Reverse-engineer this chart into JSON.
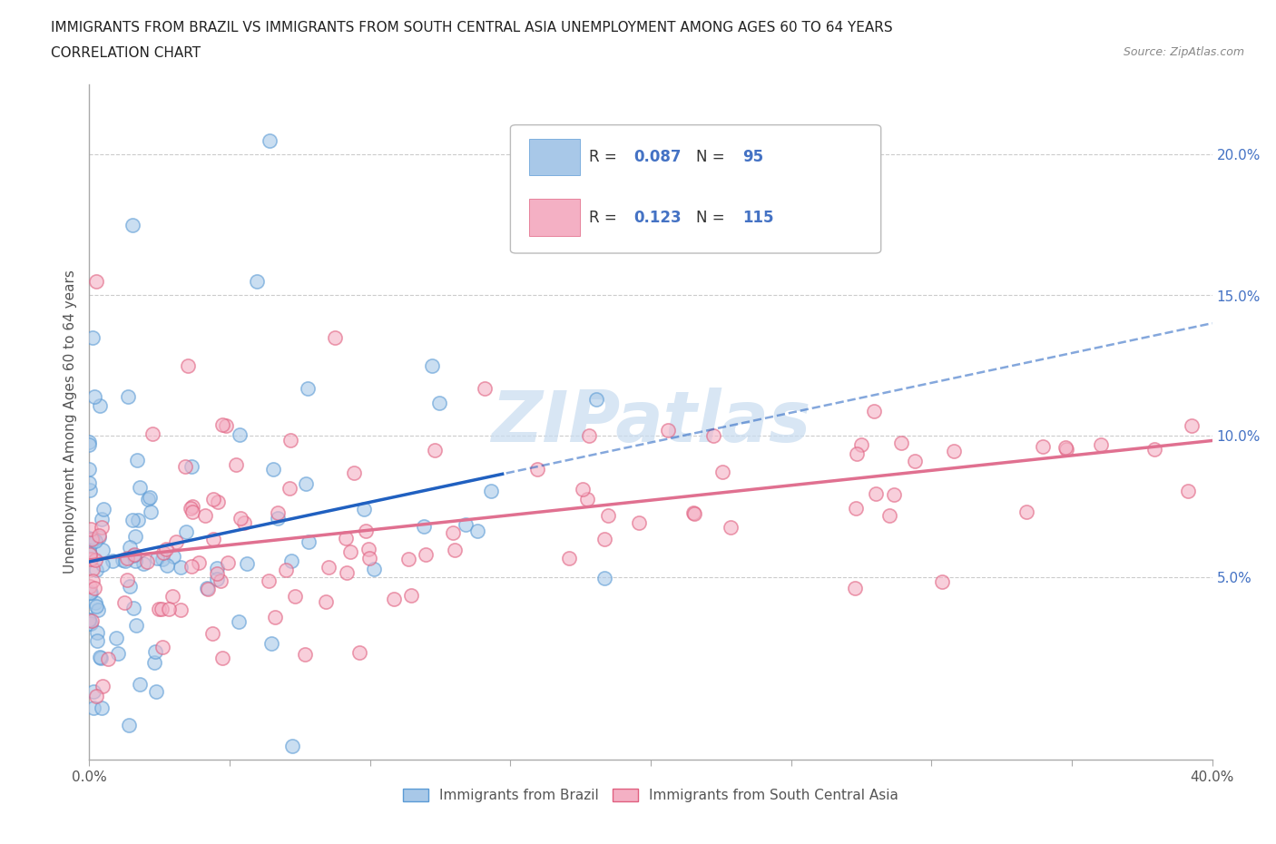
{
  "title_line1": "IMMIGRANTS FROM BRAZIL VS IMMIGRANTS FROM SOUTH CENTRAL ASIA UNEMPLOYMENT AMONG AGES 60 TO 64 YEARS",
  "title_line2": "CORRELATION CHART",
  "source_text": "Source: ZipAtlas.com",
  "ylabel": "Unemployment Among Ages 60 to 64 years",
  "xlim": [
    0.0,
    0.4
  ],
  "ylim": [
    -0.015,
    0.225
  ],
  "xtick_pos": [
    0.0,
    0.05,
    0.1,
    0.15,
    0.2,
    0.25,
    0.3,
    0.35,
    0.4
  ],
  "xtick_labels": [
    "0.0%",
    "",
    "",
    "",
    "",
    "",
    "",
    "",
    "40.0%"
  ],
  "ytick_pos": [
    0.05,
    0.1,
    0.15,
    0.2
  ],
  "ytick_labels": [
    "5.0%",
    "10.0%",
    "15.0%",
    "20.0%"
  ],
  "brazil_color": "#A8C8E8",
  "brazil_edge": "#5B9BD5",
  "sca_color": "#F4B0C4",
  "sca_edge": "#E06080",
  "trend_brazil_color": "#2060C0",
  "trend_sca_color": "#E07090",
  "legend_R_color": "#4472C4",
  "watermark_color": "#D8E8F0",
  "background_color": "#FFFFFF",
  "brazil_R": 0.087,
  "brazil_N": 95,
  "sca_R": 0.123,
  "sca_N": 115
}
